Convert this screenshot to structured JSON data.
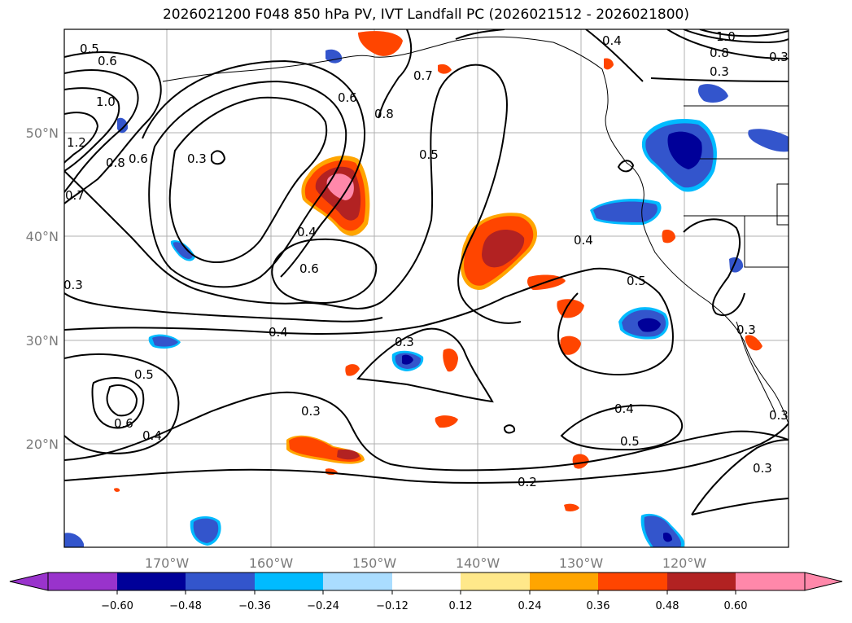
{
  "title": "2026021200 F048 850 hPa PV, IVT Landfall PC (2026021512 - 2026021800)",
  "lat_labels": [
    "50°N",
    "40°N",
    "30°N",
    "20°N"
  ],
  "lon_labels": [
    "170°W",
    "160°W",
    "150°W",
    "140°W",
    "130°W",
    "120°W"
  ],
  "contour_labels": [
    "0.5",
    "0.6",
    "1.0",
    "1.2",
    "0.8",
    "0.6",
    "0.7",
    "0.3",
    "0.3",
    "0.4",
    "0.6",
    "0.4",
    "0.6",
    "0.8",
    "0.7",
    "0.5",
    "0.4",
    "0.5",
    "0.3",
    "0.5",
    "0.6",
    "0.4",
    "0.3",
    "0.4",
    "0.5",
    "0.2",
    "0.3",
    "0.3",
    "0.4",
    "1.0",
    "0.8",
    "0.3",
    "0.3",
    "0.3"
  ],
  "colorbar": {
    "ticks": [
      "−0.60",
      "−0.48",
      "−0.36",
      "−0.24",
      "−0.12",
      "0.12",
      "0.24",
      "0.36",
      "0.48",
      "0.60"
    ],
    "colors": [
      "#9933cc",
      "#000099",
      "#3355cc",
      "#00bbff",
      "#aaddff",
      "#ffffff",
      "#ffe88a",
      "#ffa500",
      "#ff4500",
      "#b22222",
      "#ff88aa"
    ]
  },
  "colors": {
    "grid": "#b0b0b0",
    "axis_label": "#7a7a7a",
    "contour": "#000000"
  }
}
